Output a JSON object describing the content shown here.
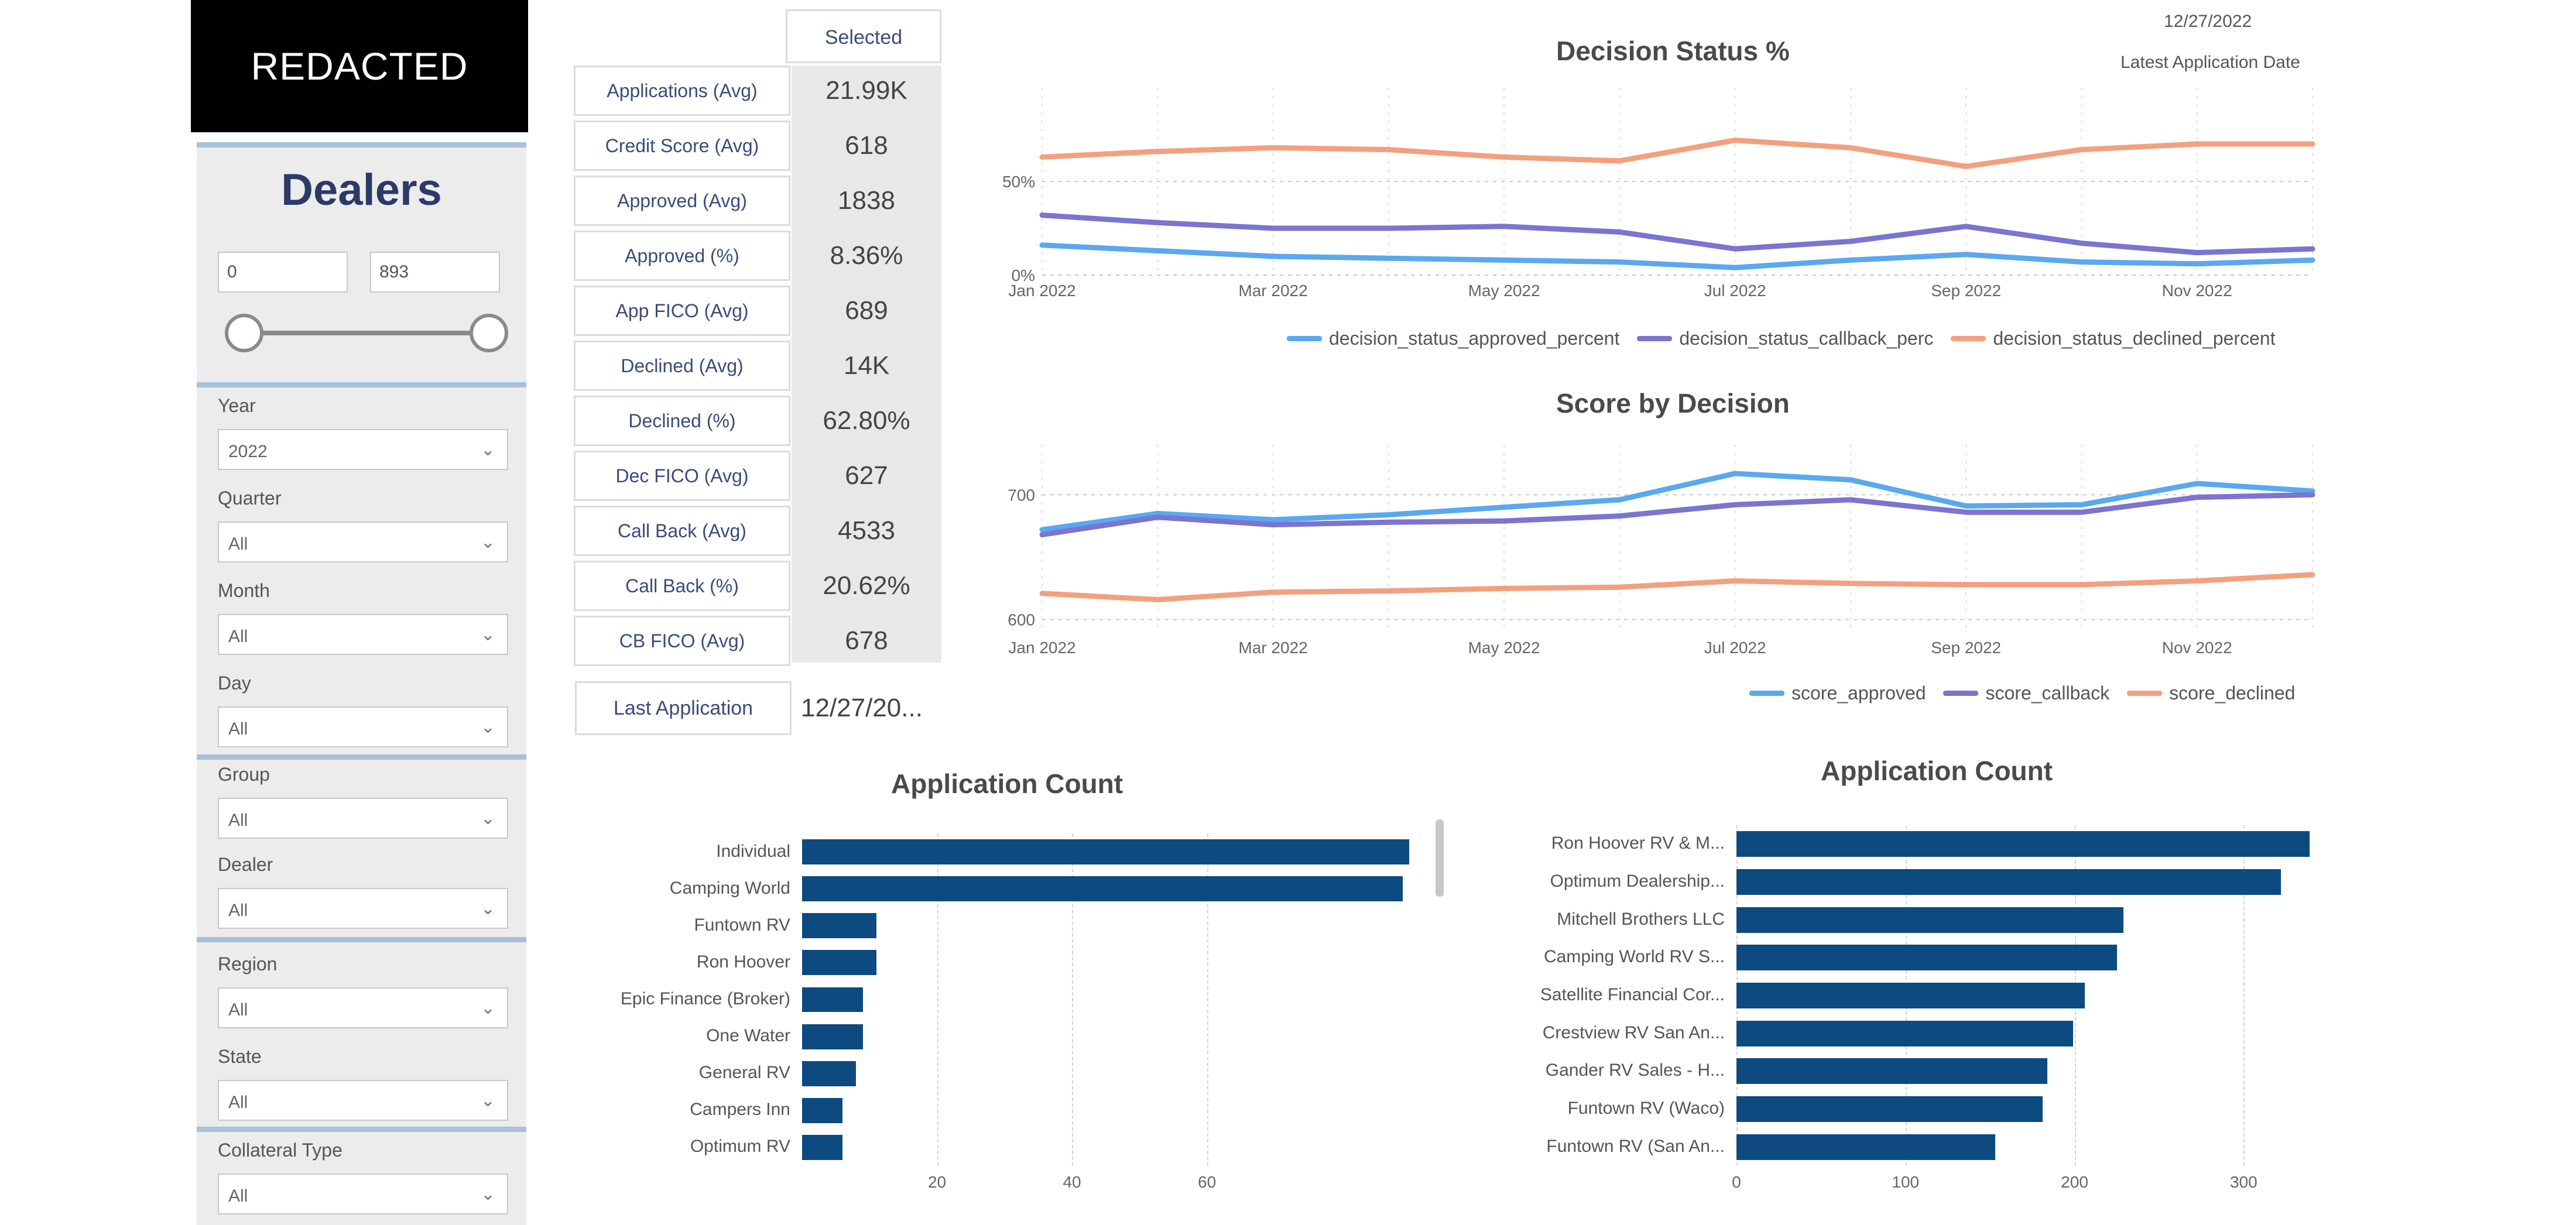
{
  "logo": {
    "text": "REDACTED"
  },
  "sidebar": {
    "title": "Dealers",
    "range": {
      "min": "0",
      "max": "893"
    },
    "filters": [
      {
        "label": "Year",
        "value": "2022"
      },
      {
        "label": "Quarter",
        "value": "All"
      },
      {
        "label": "Month",
        "value": "All"
      },
      {
        "label": "Day",
        "value": "All"
      },
      {
        "label": "Group",
        "value": "All"
      },
      {
        "label": "Dealer",
        "value": "All"
      },
      {
        "label": "Region",
        "value": "All"
      },
      {
        "label": "State",
        "value": "All"
      },
      {
        "label": "Collateral Type",
        "value": "All"
      }
    ]
  },
  "kpis": {
    "header": "Selected",
    "rows": [
      {
        "label": "Applications (Avg)",
        "value": "21.99K"
      },
      {
        "label": "Credit Score (Avg)",
        "value": "618"
      },
      {
        "label": "Approved (Avg)",
        "value": "1838"
      },
      {
        "label": "Approved (%)",
        "value": "8.36%"
      },
      {
        "label": "App FICO (Avg)",
        "value": "689"
      },
      {
        "label": "Declined (Avg)",
        "value": "14K"
      },
      {
        "label": "Declined (%)",
        "value": "62.80%"
      },
      {
        "label": "Dec FICO (Avg)",
        "value": "627"
      },
      {
        "label": "Call Back (Avg)",
        "value": "4533"
      },
      {
        "label": "Call Back (%)",
        "value": "20.62%"
      },
      {
        "label": "CB FICO (Avg)",
        "value": "678"
      }
    ],
    "last_application_label": "Last Application",
    "last_application_value": "12/27/20..."
  },
  "header_right": {
    "date": "12/27/2022",
    "date_caption": "Latest Application Date"
  },
  "colors": {
    "approved": "#5aa8f0",
    "callback": "#7b74d0",
    "declined": "#f3a07f",
    "bar": "#0d4a80"
  },
  "chart_data": [
    {
      "type": "line",
      "title": "Decision Status %",
      "x": [
        "Jan 2022",
        "Feb 2022",
        "Mar 2022",
        "Apr 2022",
        "May 2022",
        "Jun 2022",
        "Jul 2022",
        "Aug 2022",
        "Sep 2022",
        "Oct 2022",
        "Nov 2022",
        "Dec 2022"
      ],
      "x_ticks": [
        "Jan 2022",
        "Mar 2022",
        "May 2022",
        "Jul 2022",
        "Sep 2022",
        "Nov 2022"
      ],
      "y_ticks": [
        "0%",
        "50%"
      ],
      "ylim": [
        0,
        100
      ],
      "series": [
        {
          "name": "decision_status_approved_percent",
          "values": [
            16,
            13,
            10,
            9,
            8,
            7,
            4,
            8,
            11,
            7,
            6,
            8
          ]
        },
        {
          "name": "decision_status_callback_perc",
          "values": [
            32,
            28,
            25,
            25,
            26,
            23,
            14,
            18,
            26,
            17,
            12,
            14
          ]
        },
        {
          "name": "decision_status_declined_percent",
          "values": [
            63,
            66,
            68,
            67,
            63,
            61,
            72,
            68,
            58,
            67,
            70,
            70
          ]
        }
      ]
    },
    {
      "type": "line",
      "title": "Score by Decision",
      "x": [
        "Jan 2022",
        "Feb 2022",
        "Mar 2022",
        "Apr 2022",
        "May 2022",
        "Jun 2022",
        "Jul 2022",
        "Aug 2022",
        "Sep 2022",
        "Oct 2022",
        "Nov 2022",
        "Dec 2022"
      ],
      "x_ticks": [
        "Jan 2022",
        "Mar 2022",
        "May 2022",
        "Jul 2022",
        "Sep 2022",
        "Nov 2022"
      ],
      "y_ticks": [
        "600",
        "700"
      ],
      "ylim": [
        590,
        740
      ],
      "series": [
        {
          "name": "score_approved",
          "values": [
            672,
            685,
            680,
            684,
            690,
            696,
            717,
            712,
            691,
            692,
            709,
            703
          ]
        },
        {
          "name": "score_callback",
          "values": [
            668,
            682,
            676,
            678,
            679,
            683,
            692,
            696,
            686,
            686,
            698,
            700
          ]
        },
        {
          "name": "score_declined",
          "values": [
            621,
            616,
            622,
            623,
            625,
            626,
            631,
            629,
            628,
            628,
            631,
            636
          ]
        }
      ]
    },
    {
      "type": "bar",
      "title": "Application Count",
      "categories": [
        "Individual",
        "Camping World",
        "Funtown RV",
        "Ron Hoover",
        "Epic Finance (Broker)",
        "One Water",
        "General RV",
        "Campers Inn",
        "Optimum RV"
      ],
      "values": [
        90,
        89,
        11,
        11,
        9,
        9,
        8,
        6,
        6
      ],
      "x_ticks": [
        "20",
        "40",
        "60"
      ],
      "xlim": [
        0,
        93
      ]
    },
    {
      "type": "bar",
      "title": "Application Count",
      "categories": [
        "Ron Hoover RV & M...",
        "Optimum Dealership...",
        "Mitchell Brothers LLC",
        "Camping World RV S...",
        "Satellite Financial Cor...",
        "Crestview RV San An...",
        "Gander RV Sales - H...",
        "Funtown RV (Waco)",
        "Funtown RV (San An..."
      ],
      "values": [
        339,
        322,
        229,
        225,
        206,
        199,
        184,
        181,
        153
      ],
      "x_ticks": [
        "0",
        "100",
        "200",
        "300"
      ],
      "xlim": [
        0,
        365
      ]
    }
  ]
}
